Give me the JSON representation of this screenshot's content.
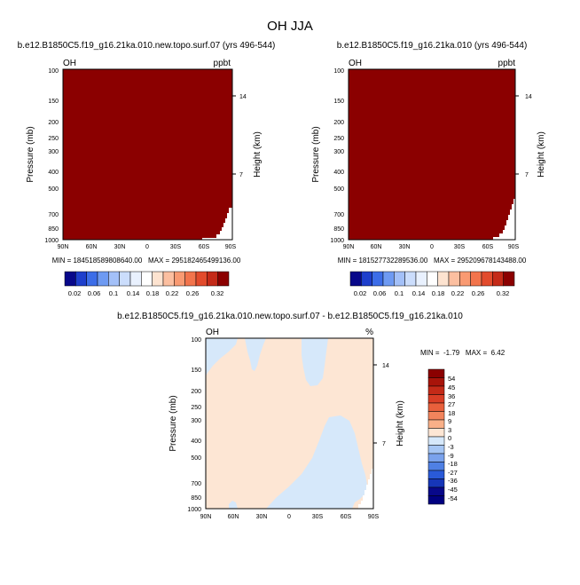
{
  "figure": {
    "title": "OH JJA"
  },
  "colors": {
    "saturated_field": "#8B0000",
    "diff_positive_small": "#FDE6D4",
    "diff_negative_small": "#D6E8FA",
    "axis": "#000000",
    "background": "#FFFFFF"
  },
  "chart_data": [
    {
      "type": "heatmap",
      "title": "b.e12.B1850C5.f19_g16.21ka.010.new.topo.surf.07 (yrs 496-544)",
      "variable_label": "OH",
      "units_label": "ppbt",
      "ylabel": "Pressure (mb)",
      "y2label": "Height (km)",
      "x_ticks": [
        "90N",
        "60N",
        "30N",
        "0",
        "30S",
        "60S",
        "90S"
      ],
      "y_ticks": [
        "100",
        "150",
        "200",
        "250",
        "300",
        "400",
        "500",
        "700",
        "850",
        "1000"
      ],
      "y_log_scale": true,
      "ylim": [
        1000,
        100
      ],
      "y2_ticks": [
        "14",
        "7"
      ],
      "stats_text": "MIN = 184518589808640.00   MAX = 295182465499136.00",
      "field_value": "all values exceed colorbar maximum (saturated)",
      "colorbar_levels": [
        "0.02",
        "0.06",
        "0.1",
        "0.14",
        "0.18",
        "0.22",
        "0.26",
        "0.32"
      ],
      "colorbar_colors": [
        "#08088A",
        "#1E3FCC",
        "#3C6DE8",
        "#6E9AF2",
        "#A3C0F8",
        "#CBDDFC",
        "#E9F1FE",
        "#FFFFFF",
        "#FDE3D0",
        "#FCBFA0",
        "#F99A72",
        "#F2744C",
        "#E24B2C",
        "#C42A18",
        "#8B0000"
      ]
    },
    {
      "type": "heatmap",
      "title": "b.e12.B1850C5.f19_g16.21ka.010 (yrs 496-544)",
      "variable_label": "OH",
      "units_label": "ppbt",
      "ylabel": "Pressure (mb)",
      "y2label": "Height (km)",
      "x_ticks": [
        "90N",
        "60N",
        "30N",
        "0",
        "30S",
        "60S",
        "90S"
      ],
      "y_ticks": [
        "100",
        "150",
        "200",
        "250",
        "300",
        "400",
        "500",
        "700",
        "850",
        "1000"
      ],
      "y_log_scale": true,
      "ylim": [
        1000,
        100
      ],
      "y2_ticks": [
        "14",
        "7"
      ],
      "stats_text": "MIN = 181527732289536.00   MAX = 295209678143488.00",
      "field_value": "all values exceed colorbar maximum (saturated)",
      "colorbar_levels": [
        "0.02",
        "0.06",
        "0.1",
        "0.14",
        "0.18",
        "0.22",
        "0.26",
        "0.32"
      ],
      "colorbar_colors": [
        "#08088A",
        "#1E3FCC",
        "#3C6DE8",
        "#6E9AF2",
        "#A3C0F8",
        "#CBDDFC",
        "#E9F1FE",
        "#FFFFFF",
        "#FDE3D0",
        "#FCBFA0",
        "#F99A72",
        "#F2744C",
        "#E24B2C",
        "#C42A18",
        "#8B0000"
      ]
    },
    {
      "type": "heatmap",
      "title": "b.e12.B1850C5.f19_g16.21ka.010.new.topo.surf.07 - b.e12.B1850C5.f19_g16.21ka.010",
      "variable_label": "OH",
      "units_label": "%",
      "ylabel": "Pressure (mb)",
      "y2label": "Height (km)",
      "x_ticks": [
        "90N",
        "60N",
        "30N",
        "0",
        "30S",
        "60S",
        "90S"
      ],
      "y_ticks": [
        "100",
        "150",
        "200",
        "250",
        "300",
        "400",
        "500",
        "700",
        "850",
        "1000"
      ],
      "y_log_scale": true,
      "ylim": [
        1000,
        100
      ],
      "y2_ticks": [
        "14",
        "7"
      ],
      "stats_text": "MIN =  -1.79   MAX =  6.42",
      "field_min": -1.79,
      "field_max": 6.42,
      "colorbar_levels": [
        "54",
        "45",
        "36",
        "27",
        "18",
        "9",
        "3",
        "0",
        "-3",
        "-9",
        "-18",
        "-27",
        "-36",
        "-45",
        "-54"
      ],
      "colorbar_colors": [
        "#8B0000",
        "#A8140A",
        "#C42A18",
        "#D93E26",
        "#E8603C",
        "#F2845C",
        "#F9B088",
        "#FDE6D4",
        "#D6E8FA",
        "#A6C6F4",
        "#7AA2EC",
        "#4F80E4",
        "#2A5AD8",
        "#1636B8",
        "#08088A",
        "#000080"
      ]
    }
  ]
}
